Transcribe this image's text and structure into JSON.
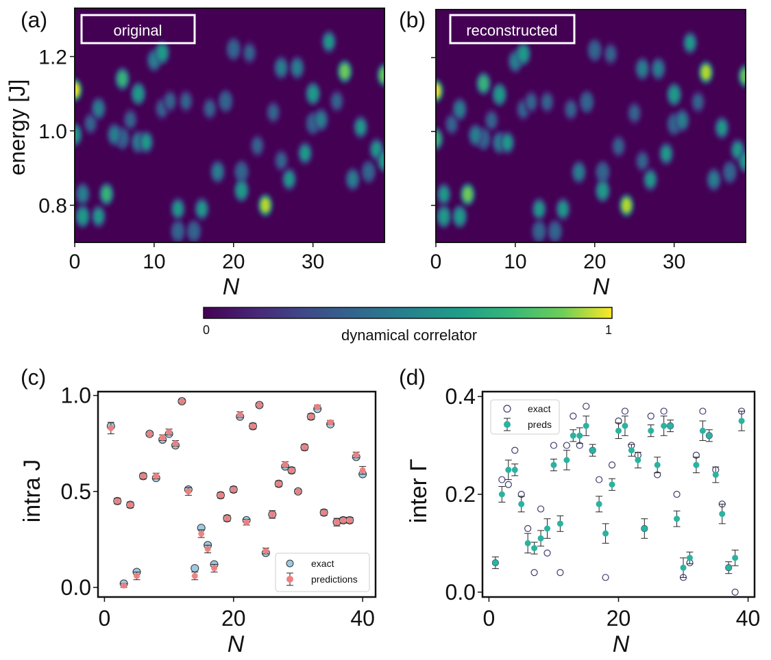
{
  "colors": {
    "viridis_low": "#440154",
    "viridis_mid": "#21918c",
    "viridis_high": "#fde725",
    "exact_c_fill": "#9ecae1",
    "pred_c": "#f08080",
    "pred_d": "#2ab3a0",
    "exact_d_edge": "#3b3b6b"
  },
  "chart_data": [
    {
      "id": "a",
      "type": "heatmap",
      "panel_label": "(a)",
      "title": "original",
      "xlabel": "N",
      "ylabel": "energy [J]",
      "xlim": [
        0,
        39
      ],
      "ylim": [
        0.7,
        1.33
      ],
      "xticks": [
        0,
        10,
        20,
        30
      ],
      "yticks": [
        0.8,
        1.0,
        1.2
      ],
      "ytick_labels": [
        "0.8",
        "1.0",
        "1.2"
      ],
      "blobs": [
        [
          0,
          1.11,
          1.0
        ],
        [
          0,
          0.99,
          0.6
        ],
        [
          1,
          0.83,
          0.45
        ],
        [
          1,
          0.77,
          0.55
        ],
        [
          2,
          1.02,
          0.3
        ],
        [
          3,
          1.06,
          0.4
        ],
        [
          3,
          0.77,
          0.5
        ],
        [
          4,
          0.83,
          0.7
        ],
        [
          5,
          0.99,
          0.4
        ],
        [
          6,
          1.14,
          0.65
        ],
        [
          6,
          0.98,
          0.35
        ],
        [
          7,
          1.03,
          0.3
        ],
        [
          8,
          1.1,
          0.55
        ],
        [
          8,
          0.97,
          0.4
        ],
        [
          9,
          0.97,
          0.5
        ],
        [
          10,
          1.19,
          0.45
        ],
        [
          11,
          1.21,
          0.55
        ],
        [
          11,
          1.06,
          0.3
        ],
        [
          12,
          1.08,
          0.3
        ],
        [
          13,
          0.79,
          0.5
        ],
        [
          13,
          0.73,
          0.35
        ],
        [
          14,
          1.08,
          0.3
        ],
        [
          15,
          0.73,
          0.35
        ],
        [
          16,
          0.79,
          0.5
        ],
        [
          17,
          1.06,
          0.3
        ],
        [
          18,
          0.89,
          0.4
        ],
        [
          19,
          1.08,
          0.35
        ],
        [
          20,
          1.22,
          0.35
        ],
        [
          21,
          0.84,
          0.55
        ],
        [
          21,
          0.89,
          0.35
        ],
        [
          22,
          1.21,
          0.3
        ],
        [
          23,
          0.96,
          0.3
        ],
        [
          24,
          0.8,
          0.85
        ],
        [
          25,
          1.05,
          0.3
        ],
        [
          26,
          1.17,
          0.4
        ],
        [
          26,
          0.92,
          0.3
        ],
        [
          27,
          0.87,
          0.5
        ],
        [
          28,
          1.17,
          0.4
        ],
        [
          29,
          0.94,
          0.5
        ],
        [
          30,
          1.1,
          0.55
        ],
        [
          30,
          1.02,
          0.35
        ],
        [
          31,
          1.03,
          0.45
        ],
        [
          32,
          1.24,
          0.5
        ],
        [
          33,
          1.08,
          0.3
        ],
        [
          34,
          1.16,
          0.8
        ],
        [
          35,
          0.87,
          0.45
        ],
        [
          36,
          1.01,
          0.5
        ],
        [
          37,
          0.89,
          0.35
        ],
        [
          38,
          0.95,
          0.5
        ],
        [
          39,
          1.15,
          0.75
        ],
        [
          39,
          0.92,
          0.55
        ]
      ]
    },
    {
      "id": "b",
      "type": "heatmap",
      "panel_label": "(b)",
      "title": "reconstructed",
      "xlabel": "N",
      "xlim": [
        0,
        39
      ],
      "ylim": [
        0.7,
        1.33
      ],
      "xticks": [
        0,
        10,
        20,
        30
      ],
      "blobs": [
        [
          0,
          1.11,
          1.0
        ],
        [
          0,
          0.98,
          0.65
        ],
        [
          1,
          0.83,
          0.5
        ],
        [
          1,
          0.77,
          0.6
        ],
        [
          2,
          1.02,
          0.3
        ],
        [
          3,
          1.06,
          0.4
        ],
        [
          3,
          0.77,
          0.55
        ],
        [
          4,
          0.83,
          0.75
        ],
        [
          5,
          0.99,
          0.4
        ],
        [
          6,
          1.13,
          0.7
        ],
        [
          6,
          0.98,
          0.35
        ],
        [
          7,
          1.03,
          0.3
        ],
        [
          8,
          1.1,
          0.55
        ],
        [
          8,
          0.97,
          0.4
        ],
        [
          9,
          0.97,
          0.5
        ],
        [
          10,
          1.19,
          0.45
        ],
        [
          11,
          1.21,
          0.55
        ],
        [
          11,
          1.06,
          0.3
        ],
        [
          12,
          1.08,
          0.3
        ],
        [
          13,
          0.79,
          0.5
        ],
        [
          13,
          0.73,
          0.35
        ],
        [
          14,
          1.08,
          0.3
        ],
        [
          15,
          0.73,
          0.35
        ],
        [
          16,
          0.79,
          0.5
        ],
        [
          17,
          1.06,
          0.3
        ],
        [
          18,
          0.89,
          0.4
        ],
        [
          19,
          1.08,
          0.35
        ],
        [
          20,
          1.22,
          0.35
        ],
        [
          21,
          0.84,
          0.6
        ],
        [
          21,
          0.89,
          0.35
        ],
        [
          22,
          1.21,
          0.3
        ],
        [
          23,
          0.96,
          0.3
        ],
        [
          24,
          0.8,
          0.85
        ],
        [
          25,
          1.05,
          0.3
        ],
        [
          26,
          1.17,
          0.4
        ],
        [
          26,
          0.92,
          0.3
        ],
        [
          27,
          0.87,
          0.5
        ],
        [
          28,
          1.17,
          0.4
        ],
        [
          29,
          0.94,
          0.5
        ],
        [
          30,
          1.1,
          0.55
        ],
        [
          30,
          1.02,
          0.35
        ],
        [
          31,
          1.03,
          0.45
        ],
        [
          32,
          1.24,
          0.5
        ],
        [
          33,
          1.08,
          0.3
        ],
        [
          34,
          1.16,
          0.85
        ],
        [
          35,
          0.87,
          0.45
        ],
        [
          36,
          1.01,
          0.5
        ],
        [
          37,
          0.89,
          0.35
        ],
        [
          38,
          0.95,
          0.5
        ],
        [
          39,
          1.15,
          0.75
        ],
        [
          39,
          0.92,
          0.55
        ]
      ]
    },
    {
      "id": "colorbar",
      "type": "heatmap",
      "label": "dynamical correlator",
      "range": [
        0,
        1
      ],
      "tick_labels": [
        "0",
        "1"
      ]
    },
    {
      "id": "c",
      "type": "scatter",
      "panel_label": "(c)",
      "xlabel": "N",
      "ylabel": "intra J",
      "xlim": [
        -1,
        42
      ],
      "ylim": [
        -0.05,
        1.02
      ],
      "xticks": [
        0,
        20,
        40
      ],
      "yticks": [
        0.0,
        0.5,
        1.0
      ],
      "ytick_labels": [
        "0.0",
        "0.5",
        "1.0"
      ],
      "legend": [
        "exact",
        "predictions"
      ],
      "series": [
        {
          "name": "exact",
          "x": [
            1,
            2,
            3,
            4,
            5,
            6,
            7,
            8,
            9,
            10,
            11,
            12,
            13,
            14,
            15,
            16,
            17,
            18,
            19,
            20,
            21,
            22,
            23,
            24,
            25,
            26,
            27,
            28,
            29,
            30,
            31,
            32,
            33,
            34,
            35,
            36,
            37,
            38,
            39,
            40
          ],
          "values": [
            0.84,
            0.45,
            0.02,
            0.43,
            0.08,
            0.58,
            0.8,
            0.57,
            0.77,
            0.8,
            0.74,
            0.97,
            0.51,
            0.1,
            0.31,
            0.22,
            0.12,
            0.48,
            0.36,
            0.51,
            0.89,
            0.35,
            0.84,
            0.95,
            0.18,
            0.38,
            0.54,
            0.63,
            0.61,
            0.5,
            0.73,
            0.89,
            0.93,
            0.39,
            0.85,
            0.34,
            0.35,
            0.35,
            0.68,
            0.59
          ]
        },
        {
          "name": "predictions",
          "x": [
            1,
            2,
            3,
            4,
            5,
            6,
            7,
            8,
            9,
            10,
            11,
            12,
            13,
            14,
            15,
            16,
            17,
            18,
            19,
            20,
            21,
            22,
            23,
            24,
            25,
            26,
            27,
            28,
            29,
            30,
            31,
            32,
            33,
            34,
            35,
            36,
            37,
            38,
            39,
            40
          ],
          "values": [
            0.83,
            0.45,
            0.01,
            0.43,
            0.06,
            0.58,
            0.8,
            0.58,
            0.78,
            0.81,
            0.75,
            0.97,
            0.5,
            0.06,
            0.28,
            0.2,
            0.1,
            0.48,
            0.36,
            0.51,
            0.9,
            0.34,
            0.84,
            0.95,
            0.19,
            0.38,
            0.54,
            0.64,
            0.61,
            0.5,
            0.73,
            0.89,
            0.94,
            0.39,
            0.86,
            0.34,
            0.35,
            0.35,
            0.69,
            0.61
          ],
          "errors": [
            0.03,
            0.015,
            0.01,
            0.015,
            0.02,
            0.015,
            0.01,
            0.015,
            0.015,
            0.015,
            0.015,
            0.01,
            0.02,
            0.02,
            0.02,
            0.02,
            0.02,
            0.015,
            0.015,
            0.015,
            0.015,
            0.015,
            0.015,
            0.01,
            0.015,
            0.02,
            0.015,
            0.015,
            0.015,
            0.01,
            0.015,
            0.015,
            0.01,
            0.015,
            0.01,
            0.02,
            0.015,
            0.015,
            0.015,
            0.02
          ]
        }
      ]
    },
    {
      "id": "d",
      "type": "scatter",
      "panel_label": "(d)",
      "xlabel": "N",
      "ylabel": "inter Γ",
      "xlim": [
        -1,
        41
      ],
      "ylim": [
        -0.01,
        0.41
      ],
      "xticks": [
        0,
        20,
        40
      ],
      "yticks": [
        0.0,
        0.2,
        0.4
      ],
      "ytick_labels": [
        "0.0",
        "0.2",
        "0.4"
      ],
      "legend": [
        "exact",
        "preds"
      ],
      "series": [
        {
          "name": "exact",
          "x": [
            1,
            2,
            3,
            4,
            5,
            6,
            7,
            8,
            9,
            10,
            11,
            12,
            13,
            14,
            15,
            16,
            17,
            18,
            19,
            20,
            21,
            22,
            23,
            24,
            25,
            26,
            27,
            28,
            29,
            30,
            31,
            32,
            33,
            34,
            35,
            36,
            37,
            38,
            39
          ],
          "values": [
            0.06,
            0.23,
            0.22,
            0.29,
            0.2,
            0.13,
            0.04,
            0.17,
            0.08,
            0.3,
            0.04,
            0.3,
            0.36,
            0.3,
            0.38,
            0.29,
            0.23,
            0.03,
            0.26,
            0.35,
            0.37,
            0.3,
            0.28,
            0.13,
            0.36,
            0.24,
            0.37,
            0.34,
            0.2,
            0.03,
            0.06,
            0.28,
            0.37,
            0.32,
            0.25,
            0.18,
            0.05,
            0.0,
            0.37
          ]
        },
        {
          "name": "preds",
          "x": [
            1,
            2,
            3,
            4,
            5,
            6,
            7,
            8,
            9,
            10,
            11,
            12,
            13,
            14,
            15,
            16,
            17,
            18,
            19,
            20,
            21,
            22,
            23,
            24,
            25,
            26,
            27,
            28,
            29,
            30,
            31,
            32,
            33,
            34,
            35,
            36,
            37,
            38,
            39
          ],
          "values": [
            0.06,
            0.2,
            0.25,
            0.25,
            0.18,
            0.1,
            0.09,
            0.11,
            0.13,
            0.26,
            0.14,
            0.27,
            0.32,
            0.32,
            0.34,
            0.29,
            0.18,
            0.12,
            0.22,
            0.33,
            0.34,
            0.29,
            0.27,
            0.13,
            0.33,
            0.26,
            0.34,
            0.34,
            0.15,
            0.05,
            0.07,
            0.26,
            0.33,
            0.32,
            0.24,
            0.16,
            0.05,
            0.07,
            0.35
          ]
        }
      ]
    }
  ]
}
